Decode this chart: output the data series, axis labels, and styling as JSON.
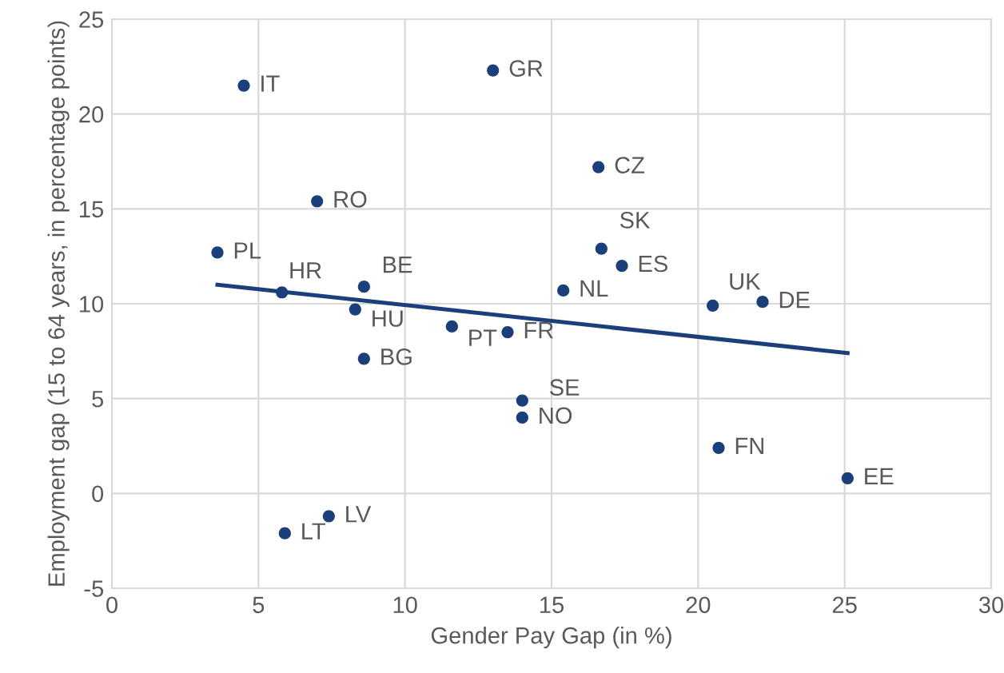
{
  "chart_data": {
    "type": "scatter",
    "xlabel": "Gender Pay Gap (in %)",
    "ylabel": "Employment gap (15 to 64 years, in percentage points)",
    "xlim": [
      0,
      30
    ],
    "xticks": [
      0,
      5,
      10,
      15,
      20,
      25,
      30
    ],
    "ylim": [
      -5,
      25
    ],
    "yticks": [
      -5,
      0,
      5,
      10,
      15,
      20,
      25
    ],
    "grid": true,
    "legend": false,
    "series": [
      {
        "marker": "circle",
        "color": "#1b3f7a",
        "x": [
          4.5,
          13.0,
          7.0,
          3.6,
          5.8,
          8.6,
          8.3,
          16.6,
          16.7,
          17.4,
          15.4,
          20.5,
          22.2,
          11.6,
          13.5,
          8.6,
          14.0,
          14.0,
          7.4,
          5.9,
          20.7,
          25.1
        ],
        "values": [
          21.5,
          22.3,
          15.4,
          12.7,
          10.6,
          10.9,
          9.7,
          17.2,
          12.9,
          12.0,
          10.7,
          9.9,
          10.1,
          8.8,
          8.5,
          7.1,
          4.9,
          4.0,
          -1.2,
          -2.1,
          2.4,
          0.8
        ]
      },
      {
        "type": "line",
        "color": "#1b3f7a",
        "x": [
          3.6,
          25.1
        ],
        "values": [
          11.0,
          7.4
        ]
      }
    ],
    "annotations": [
      {
        "text": "IT",
        "x": 4.5,
        "y": 21.5
      },
      {
        "text": "GR",
        "x": 13.0,
        "y": 22.3
      },
      {
        "text": "RO",
        "x": 7.0,
        "y": 15.4
      },
      {
        "text": "PL",
        "x": 3.6,
        "y": 12.7
      },
      {
        "text": "HR",
        "x": 5.8,
        "y": 10.6
      },
      {
        "text": "BE",
        "x": 8.6,
        "y": 10.9
      },
      {
        "text": "HU",
        "x": 8.3,
        "y": 9.7
      },
      {
        "text": "CZ",
        "x": 16.6,
        "y": 17.2
      },
      {
        "text": "SK",
        "x": 16.7,
        "y": 12.9
      },
      {
        "text": "ES",
        "x": 17.4,
        "y": 12.0
      },
      {
        "text": "NL",
        "x": 15.4,
        "y": 10.7
      },
      {
        "text": "UK",
        "x": 20.5,
        "y": 9.9
      },
      {
        "text": "DE",
        "x": 22.2,
        "y": 10.1
      },
      {
        "text": "PT",
        "x": 11.6,
        "y": 8.8
      },
      {
        "text": "FR",
        "x": 13.5,
        "y": 8.5
      },
      {
        "text": "BG",
        "x": 8.6,
        "y": 7.1
      },
      {
        "text": "SE",
        "x": 14.0,
        "y": 4.9
      },
      {
        "text": "NO",
        "x": 14.0,
        "y": 4.0
      },
      {
        "text": "LV",
        "x": 7.4,
        "y": -1.2
      },
      {
        "text": "LT",
        "x": 5.9,
        "y": -2.1
      },
      {
        "text": "FN",
        "x": 20.7,
        "y": 2.4
      },
      {
        "text": "EE",
        "x": 25.1,
        "y": 0.8
      }
    ]
  }
}
